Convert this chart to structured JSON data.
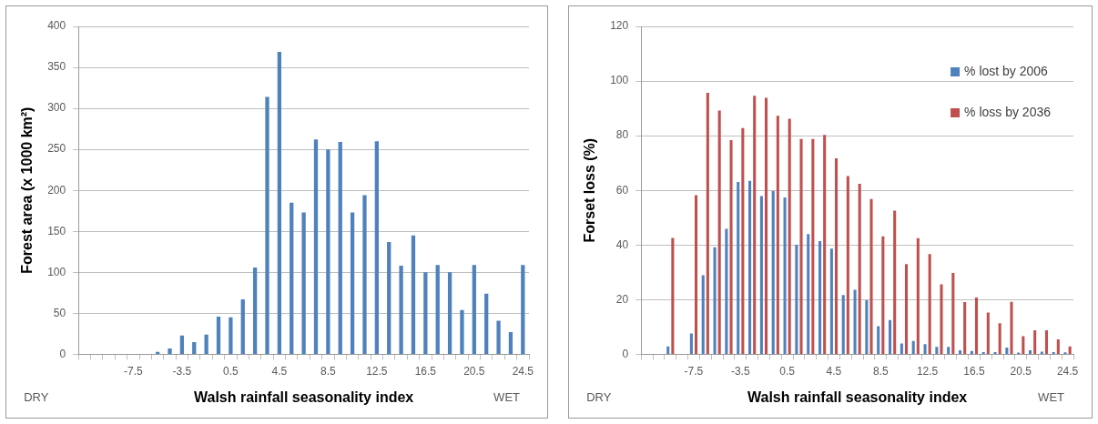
{
  "chart_data": [
    {
      "type": "bar",
      "xlabel": "Walsh rainfall seasonality index",
      "ylabel": "Forest area (x 1000 km²)",
      "categories": [
        null,
        null,
        null,
        null,
        "-7.5",
        null,
        null,
        null,
        "-3.5",
        null,
        null,
        null,
        "0.5",
        null,
        null,
        null,
        "4.5",
        null,
        null,
        null,
        "8.5",
        null,
        null,
        null,
        "12.5",
        null,
        null,
        null,
        "16.5",
        null,
        null,
        null,
        "20.5",
        null,
        null,
        null,
        "24.5"
      ],
      "values": [
        0,
        0,
        0,
        0,
        0,
        0,
        3,
        7,
        23,
        15,
        24,
        46,
        45,
        67,
        106,
        314,
        369,
        185,
        173,
        262,
        250,
        259,
        173,
        194,
        260,
        137,
        108,
        145,
        100,
        109,
        100,
        54,
        109,
        74,
        41,
        27,
        109
      ],
      "color": "#4f81bd",
      "ylim": [
        0,
        400
      ],
      "yticks": [
        0,
        50,
        100,
        150,
        200,
        250,
        300,
        350,
        400
      ],
      "grid": "y",
      "legend": false,
      "annotations": [
        "DRY",
        "WET"
      ]
    },
    {
      "type": "bar",
      "xlabel": "Walsh rainfall seasonality index",
      "ylabel": "Forset loss (%)",
      "categories": [
        null,
        null,
        null,
        null,
        "-7.5",
        null,
        null,
        null,
        "-3.5",
        null,
        null,
        null,
        "0.5",
        null,
        null,
        null,
        "4.5",
        null,
        null,
        null,
        "8.5",
        null,
        null,
        null,
        "12.5",
        null,
        null,
        null,
        "16.5",
        null,
        null,
        null,
        "20.5",
        null,
        null,
        null,
        "24.5"
      ],
      "series": [
        {
          "name": "% lost by 2006",
          "color": "#4f81bd",
          "values": [
            null,
            null,
            2.9,
            null,
            7.6,
            28.9,
            39.2,
            45.9,
            63.1,
            63.5,
            57.9,
            59.7,
            57.4,
            40.1,
            44,
            41.4,
            38.7,
            21.7,
            23.6,
            19.8,
            10.3,
            12.5,
            4,
            4.9,
            3.7,
            2.7,
            2.7,
            1.5,
            1.2,
            0.8,
            0.8,
            2.5,
            0.6,
            1.5,
            1,
            0.8,
            0.7
          ]
        },
        {
          "name": "% loss by 2036",
          "color": "#c0504d",
          "values": [
            null,
            null,
            42.6,
            null,
            58.2,
            95.7,
            89.2,
            78.4,
            82.8,
            94.6,
            93.9,
            87.3,
            86.2,
            78.8,
            78.8,
            80.3,
            71.7,
            65.2,
            62.4,
            56.8,
            43.2,
            52.6,
            33,
            42.5,
            36.7,
            25.6,
            29.8,
            19.1,
            20.8,
            15.3,
            11.4,
            19.2,
            6.6,
            8.8,
            8.8,
            5.5,
            2.9
          ]
        }
      ],
      "ylim": [
        0,
        120
      ],
      "yticks": [
        0,
        20,
        40,
        60,
        80,
        100,
        120
      ],
      "grid": "y",
      "legend": "top right",
      "annotations": [
        "DRY",
        "WET"
      ]
    }
  ]
}
